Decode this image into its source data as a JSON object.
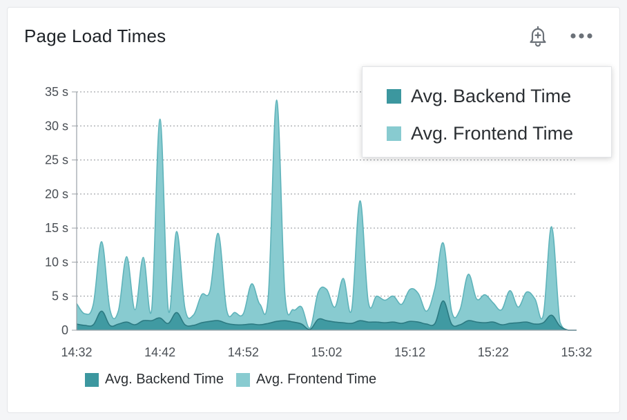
{
  "panel": {
    "title": "Page Load Times",
    "alert_icon": "bell-plus-icon",
    "menu_icon": "more-horizontal-icon"
  },
  "tooltip": {
    "items": [
      {
        "label": "Avg. Backend Time",
        "color": "#3c979f"
      },
      {
        "label": "Avg. Frontend Time",
        "color": "#88cbd0"
      }
    ]
  },
  "legend": {
    "items": [
      {
        "label": "Avg. Backend Time",
        "color": "#3c979f"
      },
      {
        "label": "Avg. Frontend Time",
        "color": "#88cbd0"
      }
    ]
  },
  "chart_data": {
    "type": "area",
    "stacked": false,
    "title": "Page Load Times",
    "xlabel": "",
    "ylabel": "",
    "x_ticks": [
      "14:32",
      "14:42",
      "14:52",
      "15:02",
      "15:12",
      "15:22",
      "15:32"
    ],
    "y_ticks": [
      "0",
      "5 s",
      "10 s",
      "15 s",
      "20 s",
      "25 s",
      "30 s",
      "35 s"
    ],
    "ylim": [
      0,
      35
    ],
    "y_unit": "s",
    "grid": "horizontal-dotted",
    "legend_position": "bottom-left",
    "x": [
      "14:32",
      "14:33",
      "14:34",
      "14:35",
      "14:36",
      "14:37",
      "14:38",
      "14:39",
      "14:40",
      "14:41",
      "14:42",
      "14:43",
      "14:44",
      "14:45",
      "14:46",
      "14:47",
      "14:48",
      "14:49",
      "14:50",
      "14:51",
      "14:52",
      "14:53",
      "14:54",
      "14:55",
      "14:56",
      "14:57",
      "14:58",
      "14:59",
      "15:00",
      "15:01",
      "15:02",
      "15:03",
      "15:04",
      "15:05",
      "15:06",
      "15:07",
      "15:08",
      "15:09",
      "15:10",
      "15:11",
      "15:12",
      "15:13",
      "15:14",
      "15:15",
      "15:16",
      "15:17",
      "15:18",
      "15:19",
      "15:20",
      "15:21",
      "15:22",
      "15:23",
      "15:24",
      "15:25",
      "15:26",
      "15:27",
      "15:28",
      "15:29",
      "15:30",
      "15:31",
      "15:32"
    ],
    "series": [
      {
        "name": "Avg. Frontend Time",
        "color": "#88cbd0",
        "values": [
          3.9,
          2.4,
          3.8,
          13.0,
          3.0,
          2.8,
          10.8,
          3.0,
          10.7,
          3.0,
          31.0,
          3.0,
          14.5,
          3.2,
          2.2,
          5.2,
          5.8,
          14.2,
          3.0,
          2.6,
          2.4,
          6.8,
          3.8,
          5.0,
          33.8,
          5.2,
          3.0,
          3.4,
          0.3,
          5.6,
          6.0,
          3.4,
          7.6,
          3.0,
          19.0,
          4.2,
          5.0,
          4.4,
          5.0,
          3.8,
          6.0,
          5.4,
          2.8,
          6.2,
          12.8,
          2.8,
          3.0,
          8.2,
          4.6,
          5.2,
          4.0,
          3.0,
          5.8,
          3.4,
          5.6,
          4.6,
          2.2,
          15.2,
          1.2,
          0.0,
          0.0
        ]
      },
      {
        "name": "Avg. Backend Time",
        "color": "#3c979f",
        "values": [
          0.9,
          0.7,
          0.8,
          2.8,
          0.7,
          0.9,
          1.2,
          0.8,
          1.4,
          1.4,
          1.8,
          1.0,
          2.6,
          0.8,
          0.7,
          1.1,
          1.3,
          1.4,
          1.0,
          0.8,
          0.8,
          0.9,
          0.8,
          1.0,
          1.3,
          1.4,
          1.2,
          0.9,
          0.1,
          1.6,
          1.4,
          1.2,
          1.1,
          1.0,
          1.4,
          1.2,
          1.2,
          1.1,
          1.2,
          1.0,
          1.3,
          1.2,
          0.9,
          1.0,
          4.3,
          0.9,
          0.8,
          1.4,
          1.2,
          1.1,
          1.2,
          0.8,
          1.0,
          1.1,
          1.2,
          0.9,
          1.1,
          2.2,
          0.6,
          0.0,
          0.0
        ]
      }
    ]
  }
}
